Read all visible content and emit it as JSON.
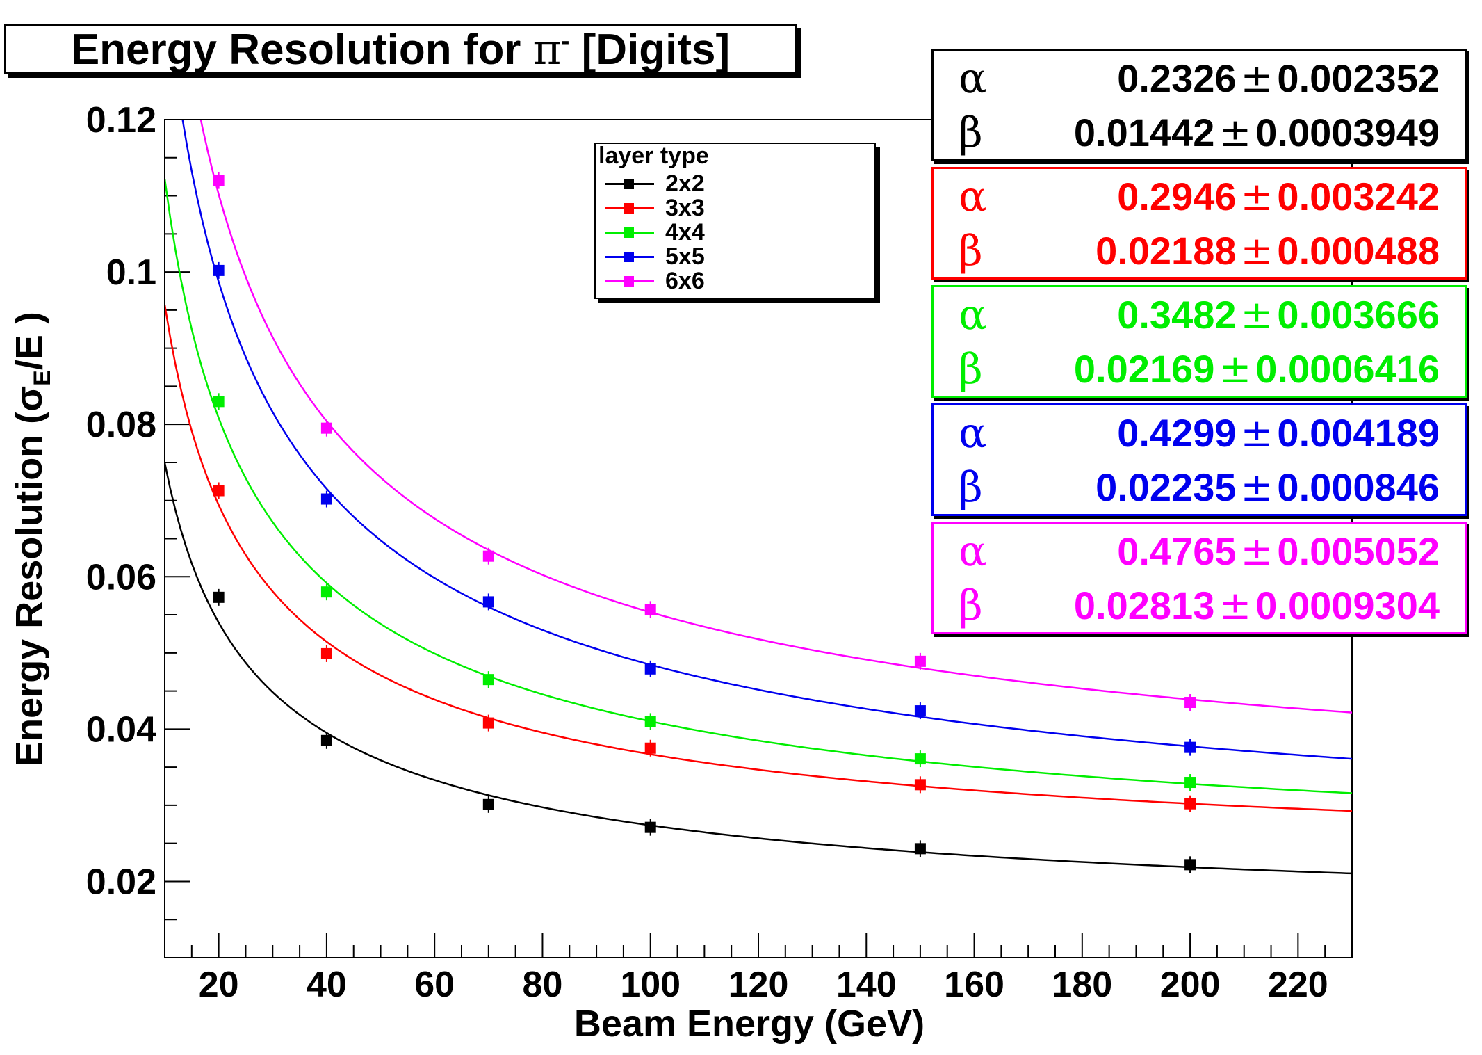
{
  "title": {
    "prefix": "Energy Resolution for ",
    "symbol": "π",
    "superscript": "-",
    "suffix": " [Digits]"
  },
  "chart_data": {
    "type": "line",
    "xlabel": "Beam Energy (GeV)",
    "ylabel": "Energy Resolution (σ_E/E)",
    "ylabel_parts": {
      "pre": "Energy Resolution (σ",
      "sub": "E",
      "post": "/E )"
    },
    "xlim": [
      10,
      230
    ],
    "ylim": [
      0.01,
      0.12
    ],
    "x_ticks": [
      20,
      40,
      60,
      80,
      100,
      120,
      140,
      160,
      180,
      200,
      220
    ],
    "x_tick_labels": [
      "20",
      "40",
      "60",
      "80",
      "100",
      "120",
      "140",
      "160",
      "180",
      "200",
      "220"
    ],
    "y_ticks": [
      0.02,
      0.04,
      0.06,
      0.08,
      0.1,
      0.12
    ],
    "y_tick_labels": [
      "0.02",
      "0.04",
      "0.06",
      "0.08",
      "0.1",
      "0.12"
    ],
    "fit_model": "sqrt(alpha^2/E + beta^2)",
    "x": [
      20,
      40,
      70,
      100,
      150,
      200
    ],
    "legend_title": "layer type",
    "legend_position": "top-center",
    "series": [
      {
        "name": "2x2",
        "color": "#000000",
        "values": [
          0.0573,
          0.0385,
          0.0301,
          0.0271,
          0.0243,
          0.0222
        ],
        "fit": {
          "alpha": "0.2326",
          "alpha_err": "0.002352",
          "beta": "0.01442",
          "beta_err": "0.0003949"
        }
      },
      {
        "name": "3x3",
        "color": "#ff0000",
        "values": [
          0.0713,
          0.0499,
          0.0408,
          0.0375,
          0.0327,
          0.0302
        ],
        "fit": {
          "alpha": "0.2946",
          "alpha_err": "0.003242",
          "beta": "0.02188",
          "beta_err": "0.000488"
        }
      },
      {
        "name": "4x4",
        "color": "#00ee00",
        "values": [
          0.083,
          0.058,
          0.0465,
          0.041,
          0.0361,
          0.033
        ],
        "fit": {
          "alpha": "0.3482",
          "alpha_err": "0.003666",
          "beta": "0.02169",
          "beta_err": "0.0006416"
        }
      },
      {
        "name": "5x5",
        "color": "#0000ee",
        "values": [
          0.1002,
          0.0702,
          0.0567,
          0.0479,
          0.0424,
          0.0376
        ],
        "fit": {
          "alpha": "0.4299",
          "alpha_err": "0.004189",
          "beta": "0.02235",
          "beta_err": "0.000846"
        }
      },
      {
        "name": "6x6",
        "color": "#ff00ff",
        "values": [
          0.112,
          0.0795,
          0.0627,
          0.0557,
          0.0489,
          0.0435
        ],
        "fit": {
          "alpha": "0.4765",
          "alpha_err": "0.005052",
          "beta": "0.02813",
          "beta_err": "0.0009304"
        }
      }
    ],
    "stat_labels": {
      "alpha": "α",
      "beta": "β",
      "pm": "±"
    }
  }
}
